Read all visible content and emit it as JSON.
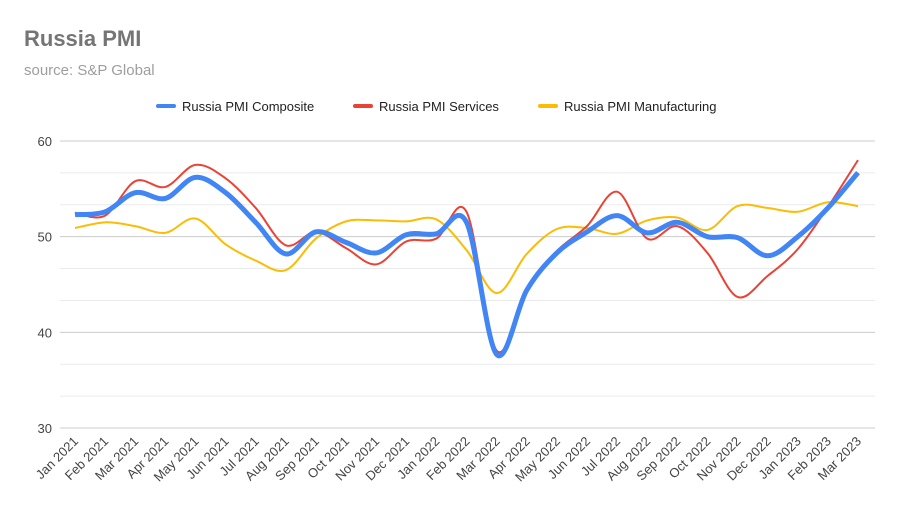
{
  "chart_data": {
    "type": "line",
    "title": "Russia PMI",
    "subtitle": "source: S&P Global",
    "xlabel": "",
    "ylabel": "",
    "ylim": [
      30,
      60
    ],
    "yticks": [
      30,
      40,
      50,
      60
    ],
    "grid": true,
    "legend_position": "top",
    "smooth": true,
    "categories": [
      "Jan 2021",
      "Feb 2021",
      "Mar 2021",
      "Apr 2021",
      "May 2021",
      "Jun 2021",
      "Jul 2021",
      "Aug 2021",
      "Sep 2021",
      "Oct 2021",
      "Nov 2021",
      "Dec 2021",
      "Jan 2022",
      "Feb 2022",
      "Mar 2022",
      "Apr 2022",
      "May 2022",
      "Jun 2022",
      "Jul 2022",
      "Aug 2022",
      "Sep 2022",
      "Oct 2022",
      "Nov 2022",
      "Dec 2022",
      "Jan 2023",
      "Feb 2023",
      "Mar 2023"
    ],
    "series": [
      {
        "name": "Russia PMI Composite",
        "color": "#4285f4",
        "values": [
          52.3,
          52.6,
          54.6,
          54.0,
          56.2,
          54.6,
          51.5,
          48.2,
          50.5,
          49.4,
          48.3,
          50.2,
          50.3,
          51.5,
          37.7,
          44.4,
          48.3,
          50.5,
          52.2,
          50.4,
          51.5,
          50.0,
          49.9,
          48.0,
          50.0,
          53.0,
          56.7
        ]
      },
      {
        "name": "Russia PMI Services",
        "color": "#ea4335",
        "values": [
          52.5,
          52.2,
          55.8,
          55.2,
          57.5,
          56.1,
          53.0,
          49.1,
          50.5,
          48.8,
          47.1,
          49.5,
          49.8,
          52.6,
          38.1,
          44.6,
          48.5,
          51.1,
          54.7,
          49.8,
          51.1,
          48.3,
          43.7,
          45.9,
          48.7,
          53.1,
          58.0
        ]
      },
      {
        "name": "Russia PMI Manufacturing",
        "color": "#fbbc04",
        "values": [
          50.9,
          51.5,
          51.1,
          50.4,
          51.9,
          49.2,
          47.5,
          46.5,
          49.8,
          51.6,
          51.7,
          51.6,
          51.8,
          48.6,
          44.1,
          48.2,
          50.8,
          50.9,
          50.3,
          51.7,
          52.0,
          50.7,
          53.2,
          53.0,
          52.6,
          53.6,
          53.2
        ]
      }
    ]
  }
}
